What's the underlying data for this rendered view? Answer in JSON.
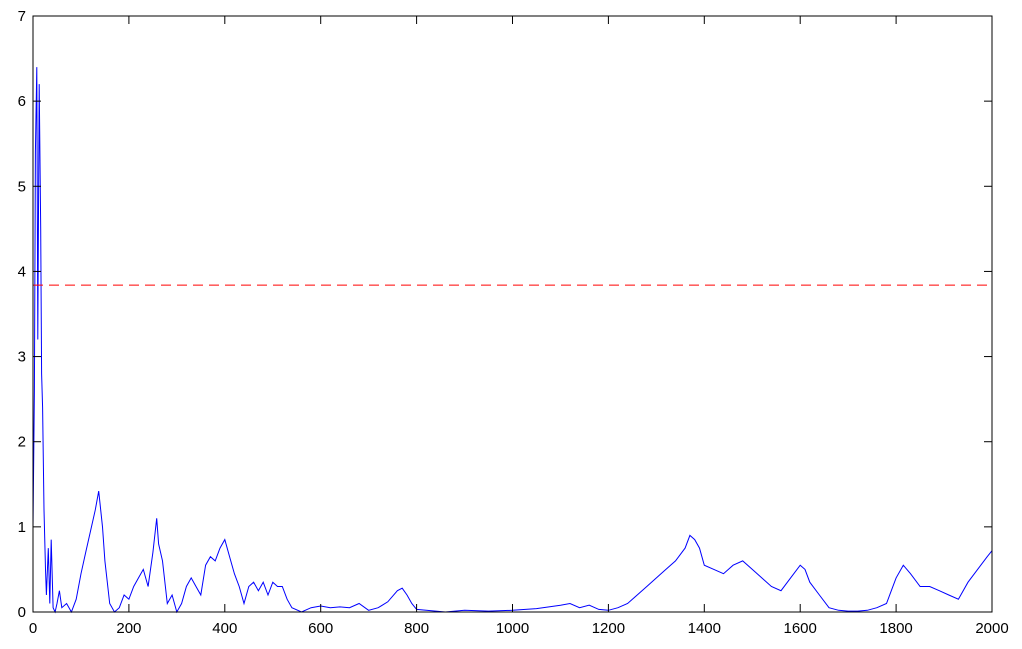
{
  "chart_data": {
    "type": "line",
    "title": "",
    "xlabel": "",
    "ylabel": "",
    "xlim": [
      0,
      2000
    ],
    "ylim": [
      0,
      7
    ],
    "x_ticks": [
      0,
      200,
      400,
      600,
      800,
      1000,
      1200,
      1400,
      1600,
      1800,
      2000
    ],
    "y_ticks": [
      0,
      1,
      2,
      3,
      4,
      5,
      6,
      7
    ],
    "grid": false,
    "legend": "none",
    "series": [
      {
        "color": "#0000ff",
        "style": "solid",
        "x": [
          0,
          3,
          5,
          8,
          10,
          13,
          16,
          18,
          20,
          23,
          26,
          28,
          32,
          35,
          38,
          42,
          46,
          50,
          55,
          60,
          70,
          80,
          90,
          100,
          110,
          120,
          130,
          137,
          145,
          150,
          160,
          170,
          180,
          190,
          200,
          210,
          220,
          230,
          240,
          250,
          258,
          262,
          270,
          280,
          290,
          300,
          310,
          320,
          330,
          340,
          350,
          360,
          370,
          380,
          390,
          400,
          410,
          420,
          430,
          440,
          450,
          460,
          470,
          480,
          490,
          500,
          510,
          520,
          530,
          540,
          560,
          580,
          600,
          620,
          640,
          660,
          680,
          700,
          720,
          740,
          760,
          770,
          780,
          790,
          800,
          820,
          840,
          860,
          880,
          900,
          950,
          1000,
          1050,
          1100,
          1120,
          1140,
          1160,
          1180,
          1200,
          1220,
          1240,
          1260,
          1280,
          1300,
          1320,
          1340,
          1360,
          1370,
          1380,
          1390,
          1400,
          1420,
          1440,
          1460,
          1480,
          1500,
          1520,
          1540,
          1560,
          1580,
          1600,
          1610,
          1620,
          1640,
          1660,
          1680,
          1700,
          1720,
          1740,
          1760,
          1780,
          1800,
          1815,
          1830,
          1850,
          1870,
          1890,
          1910,
          1930,
          1950,
          1970,
          1990,
          2000
        ],
        "y": [
          1.0,
          2.6,
          5.4,
          6.4,
          3.2,
          6.2,
          4.5,
          2.8,
          2.4,
          1.2,
          0.5,
          0.2,
          0.75,
          0.1,
          0.85,
          0.05,
          0.0,
          0.1,
          0.25,
          0.05,
          0.1,
          0.0,
          0.15,
          0.45,
          0.7,
          0.95,
          1.2,
          1.42,
          1.0,
          0.6,
          0.1,
          0.0,
          0.05,
          0.2,
          0.15,
          0.3,
          0.4,
          0.5,
          0.3,
          0.7,
          1.1,
          0.8,
          0.6,
          0.1,
          0.2,
          0.0,
          0.1,
          0.3,
          0.4,
          0.3,
          0.2,
          0.55,
          0.65,
          0.6,
          0.75,
          0.85,
          0.65,
          0.45,
          0.3,
          0.1,
          0.3,
          0.35,
          0.25,
          0.35,
          0.2,
          0.35,
          0.3,
          0.3,
          0.15,
          0.05,
          0.0,
          0.05,
          0.07,
          0.05,
          0.06,
          0.05,
          0.1,
          0.02,
          0.05,
          0.12,
          0.25,
          0.28,
          0.2,
          0.1,
          0.03,
          0.02,
          0.01,
          0.0,
          0.01,
          0.02,
          0.01,
          0.02,
          0.04,
          0.08,
          0.1,
          0.05,
          0.08,
          0.03,
          0.02,
          0.05,
          0.1,
          0.2,
          0.3,
          0.4,
          0.5,
          0.6,
          0.75,
          0.9,
          0.85,
          0.75,
          0.55,
          0.5,
          0.45,
          0.55,
          0.6,
          0.5,
          0.4,
          0.3,
          0.25,
          0.4,
          0.55,
          0.5,
          0.35,
          0.2,
          0.05,
          0.02,
          0.01,
          0.01,
          0.02,
          0.05,
          0.1,
          0.4,
          0.55,
          0.45,
          0.3,
          0.3,
          0.25,
          0.2,
          0.15,
          0.35,
          0.5,
          0.65,
          0.72
        ]
      },
      {
        "color": "#ff0000",
        "style": "dashed",
        "x": [
          0,
          2000
        ],
        "y": [
          3.84,
          3.84
        ]
      }
    ]
  }
}
